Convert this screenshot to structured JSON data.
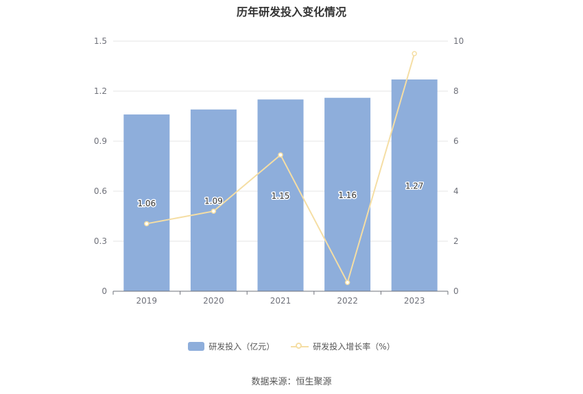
{
  "chart_data": {
    "type": "bar",
    "title": "历年研发投入变化情况",
    "categories": [
      "2019",
      "2020",
      "2021",
      "2022",
      "2023"
    ],
    "series": [
      {
        "name": "研发投入（亿元）",
        "type": "bar",
        "axis": "left",
        "values": [
          1.06,
          1.09,
          1.15,
          1.16,
          1.27
        ],
        "labels": [
          "1.06",
          "1.09",
          "1.15",
          "1.16",
          "1.27"
        ],
        "color": "#8eaedb"
      },
      {
        "name": "研发投入增长率（%）",
        "type": "line",
        "axis": "right",
        "values": [
          2.7,
          3.2,
          5.45,
          0.35,
          9.5
        ],
        "color": "#f5dea4"
      }
    ],
    "y_left": {
      "min": 0,
      "max": 1.5,
      "ticks": [
        "0",
        "0.3",
        "0.6",
        "0.9",
        "1.2",
        "1.5"
      ]
    },
    "y_right": {
      "min": 0,
      "max": 10,
      "ticks": [
        "0",
        "2",
        "4",
        "6",
        "8",
        "10"
      ]
    },
    "grid": true,
    "legend_position": "bottom"
  },
  "source": "数据来源：恒生聚源"
}
